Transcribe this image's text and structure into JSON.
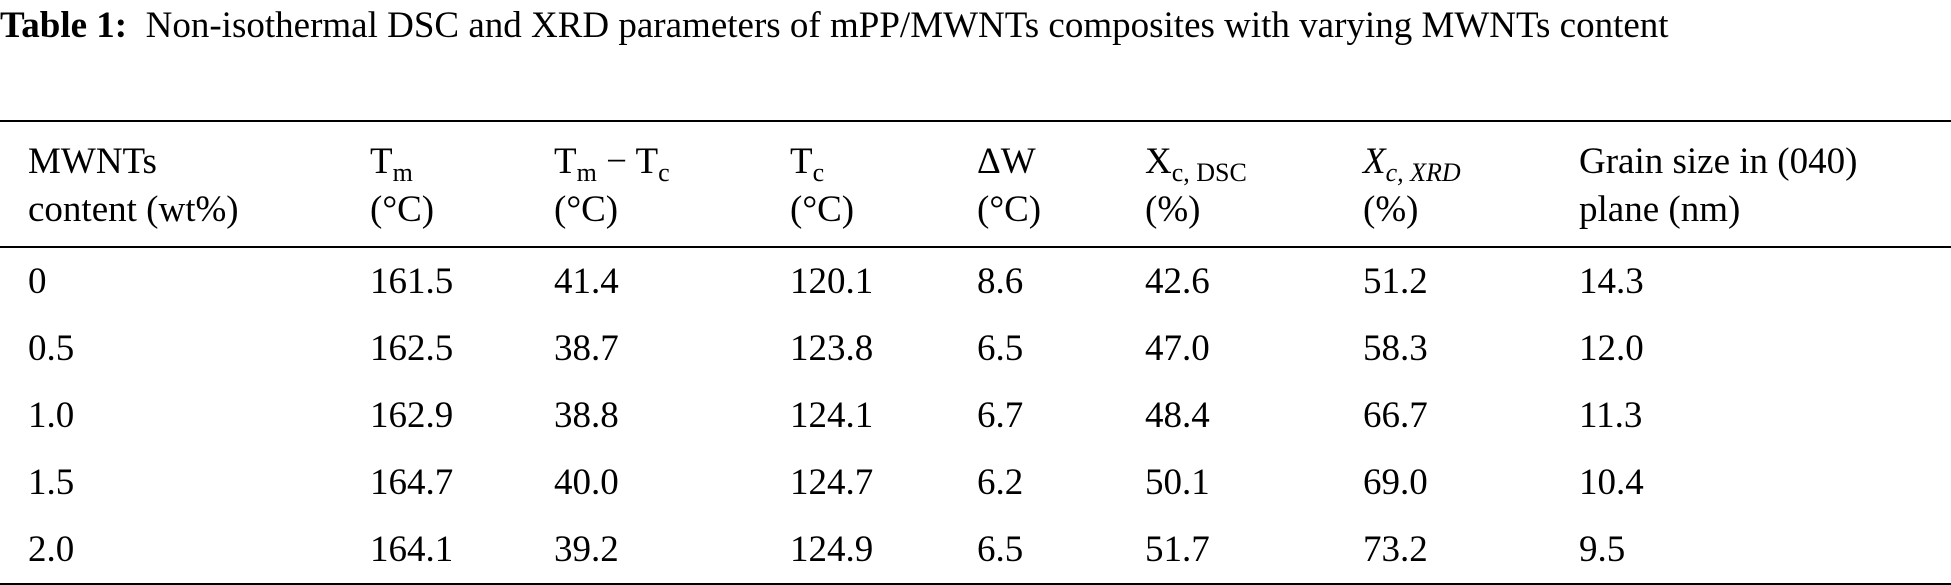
{
  "caption": {
    "label": "Table 1:",
    "text": "Non-isothermal DSC and XRD parameters of mPP/MWNTs composites with varying MWNTs content"
  },
  "table": {
    "headers": [
      {
        "line1": "MWNTs",
        "line2": "content (wt%)"
      },
      {
        "main": "T",
        "sub": "m",
        "line2": "(°C)"
      },
      {
        "main": "T",
        "sub": "m",
        "mid": " − T",
        "sub2": "c",
        "line2": "(°C)"
      },
      {
        "main": "T",
        "sub": "c",
        "line2": "(°C)"
      },
      {
        "main": "ΔW",
        "line2": "(°C)"
      },
      {
        "main": "X",
        "sub": "c, DSC",
        "line2": "(%)"
      },
      {
        "main": "X",
        "sub": "c, XRD",
        "line2": "(%)"
      },
      {
        "line1": "Grain size in (040)",
        "line2": "plane (nm)"
      }
    ],
    "rows": [
      [
        "0",
        "161.5",
        "41.4",
        "120.1",
        "8.6",
        "42.6",
        "51.2",
        "14.3"
      ],
      [
        "0.5",
        "162.5",
        "38.7",
        "123.8",
        "6.5",
        "47.0",
        "58.3",
        "12.0"
      ],
      [
        "1.0",
        "162.9",
        "38.8",
        "124.1",
        "6.7",
        "48.4",
        "66.7",
        "11.3"
      ],
      [
        "1.5",
        "164.7",
        "40.0",
        "124.7",
        "6.2",
        "50.1",
        "69.0",
        "10.4"
      ],
      [
        "2.0",
        "164.1",
        "39.2",
        "124.9",
        "6.5",
        "51.7",
        "73.2",
        "9.5"
      ]
    ]
  }
}
